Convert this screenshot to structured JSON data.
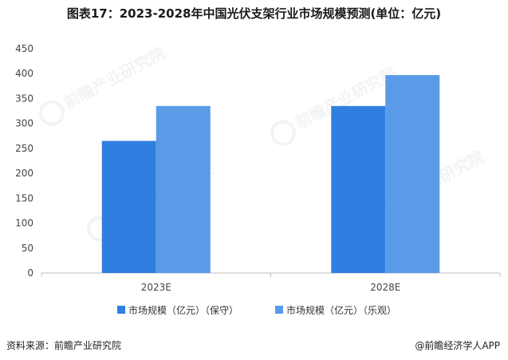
{
  "title": "图表17：2023-2028年中国光伏支架行业市场规模预测(单位：亿元)",
  "footer": {
    "source": "资料来源：前瞻产业研究院",
    "brand": "@前瞻经济学人APP"
  },
  "watermark": {
    "text": "前瞻产业研究院"
  },
  "colors": {
    "series1": "#2f7fe0",
    "series2": "#5a9be8",
    "axis": "#bfbfbf"
  },
  "chart_data": {
    "type": "bar",
    "categories": [
      "2023E",
      "2028E"
    ],
    "series": [
      {
        "name": "市场规模（亿元）（保守）",
        "values": [
          265,
          335
        ]
      },
      {
        "name": "市场规模（亿元）（乐观）",
        "values": [
          335,
          397
        ]
      }
    ],
    "ylim": [
      0,
      450
    ],
    "yticks": [
      0,
      50,
      100,
      150,
      200,
      250,
      300,
      350,
      400,
      450
    ],
    "grid": false,
    "legend": "bottom"
  }
}
